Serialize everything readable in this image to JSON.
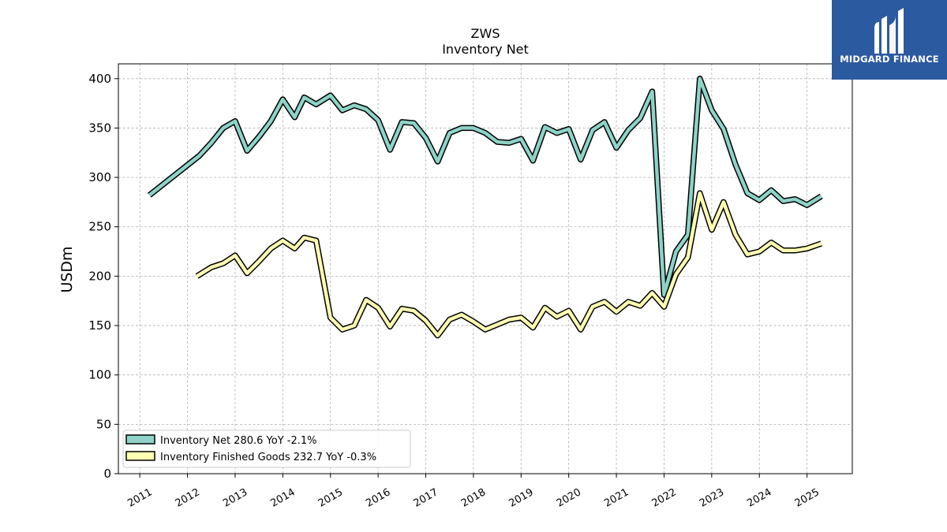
{
  "logo": {
    "text": "MIDGARD FINANCE",
    "bg_color": "#2c5aa0"
  },
  "chart_data": {
    "type": "line",
    "title": "ZWS",
    "subtitle": "Inventory Net",
    "ylabel": "USDm",
    "xlabel": "",
    "ylim": [
      0,
      415
    ],
    "xlim": [
      2010.55,
      2025.95
    ],
    "yticks": [
      0,
      50,
      100,
      150,
      200,
      250,
      300,
      350,
      400
    ],
    "xticks": [
      "2011",
      "2012",
      "2013",
      "2014",
      "2015",
      "2016",
      "2017",
      "2018",
      "2019",
      "2020",
      "2021",
      "2022",
      "2023",
      "2024",
      "2025"
    ],
    "grid": true,
    "legend_position": "lower-left",
    "series": [
      {
        "name": "Inventory Net",
        "legend_label": "Inventory Net  280.6 YoY -2.1%",
        "color": "#8dd3c7",
        "points": [
          [
            2011.2,
            282
          ],
          [
            2012.25,
            322
          ],
          [
            2012.5,
            335
          ],
          [
            2012.75,
            350
          ],
          [
            2013.0,
            357
          ],
          [
            2013.25,
            327
          ],
          [
            2013.5,
            341
          ],
          [
            2013.75,
            357
          ],
          [
            2014.0,
            379
          ],
          [
            2014.25,
            361
          ],
          [
            2014.45,
            381
          ],
          [
            2014.7,
            374
          ],
          [
            2015.0,
            383
          ],
          [
            2015.25,
            368
          ],
          [
            2015.5,
            373
          ],
          [
            2015.75,
            369
          ],
          [
            2016.0,
            358
          ],
          [
            2016.25,
            328
          ],
          [
            2016.5,
            356
          ],
          [
            2016.75,
            355
          ],
          [
            2017.0,
            340
          ],
          [
            2017.25,
            316
          ],
          [
            2017.5,
            345
          ],
          [
            2017.75,
            350
          ],
          [
            2018.0,
            350
          ],
          [
            2018.25,
            345
          ],
          [
            2018.5,
            336
          ],
          [
            2018.75,
            335
          ],
          [
            2019.0,
            339
          ],
          [
            2019.25,
            317
          ],
          [
            2019.5,
            351
          ],
          [
            2019.75,
            345
          ],
          [
            2020.0,
            349
          ],
          [
            2020.25,
            318
          ],
          [
            2020.5,
            348
          ],
          [
            2020.75,
            356
          ],
          [
            2021.0,
            330
          ],
          [
            2021.25,
            348
          ],
          [
            2021.5,
            360
          ],
          [
            2021.75,
            387
          ],
          [
            2022.0,
            181
          ],
          [
            2022.25,
            225
          ],
          [
            2022.5,
            242
          ],
          [
            2022.75,
            400
          ],
          [
            2023.0,
            368
          ],
          [
            2023.25,
            349
          ],
          [
            2023.5,
            313
          ],
          [
            2023.75,
            284
          ],
          [
            2024.0,
            277
          ],
          [
            2024.25,
            287
          ],
          [
            2024.5,
            276
          ],
          [
            2024.75,
            278
          ],
          [
            2025.0,
            272
          ],
          [
            2025.3,
            281
          ]
        ]
      },
      {
        "name": "Inventory Finished Goods",
        "legend_label": "Inventory Finished Goods  232.7 YoY -0.3%",
        "color": "#ffffb3",
        "points": [
          [
            2012.2,
            200
          ],
          [
            2012.5,
            209
          ],
          [
            2012.75,
            213
          ],
          [
            2013.0,
            221
          ],
          [
            2013.25,
            203
          ],
          [
            2013.5,
            215
          ],
          [
            2013.75,
            228
          ],
          [
            2014.0,
            236
          ],
          [
            2014.25,
            228
          ],
          [
            2014.45,
            239
          ],
          [
            2014.7,
            236
          ],
          [
            2015.0,
            158
          ],
          [
            2015.25,
            146
          ],
          [
            2015.5,
            150
          ],
          [
            2015.75,
            176
          ],
          [
            2016.0,
            168
          ],
          [
            2016.25,
            149
          ],
          [
            2016.5,
            167
          ],
          [
            2016.75,
            165
          ],
          [
            2017.0,
            155
          ],
          [
            2017.25,
            140
          ],
          [
            2017.5,
            156
          ],
          [
            2017.75,
            161
          ],
          [
            2018.0,
            154
          ],
          [
            2018.25,
            146
          ],
          [
            2018.5,
            151
          ],
          [
            2018.75,
            156
          ],
          [
            2019.0,
            158
          ],
          [
            2019.25,
            148
          ],
          [
            2019.5,
            168
          ],
          [
            2019.75,
            159
          ],
          [
            2020.0,
            165
          ],
          [
            2020.25,
            146
          ],
          [
            2020.5,
            169
          ],
          [
            2020.75,
            174
          ],
          [
            2021.0,
            164
          ],
          [
            2021.25,
            174
          ],
          [
            2021.5,
            170
          ],
          [
            2021.75,
            183
          ],
          [
            2022.0,
            169
          ],
          [
            2022.25,
            202
          ],
          [
            2022.5,
            219
          ],
          [
            2022.75,
            284
          ],
          [
            2023.0,
            247
          ],
          [
            2023.25,
            275
          ],
          [
            2023.5,
            242
          ],
          [
            2023.75,
            222
          ],
          [
            2024.0,
            225
          ],
          [
            2024.25,
            234
          ],
          [
            2024.5,
            226
          ],
          [
            2024.75,
            226
          ],
          [
            2025.0,
            228
          ],
          [
            2025.3,
            233
          ]
        ]
      }
    ]
  }
}
